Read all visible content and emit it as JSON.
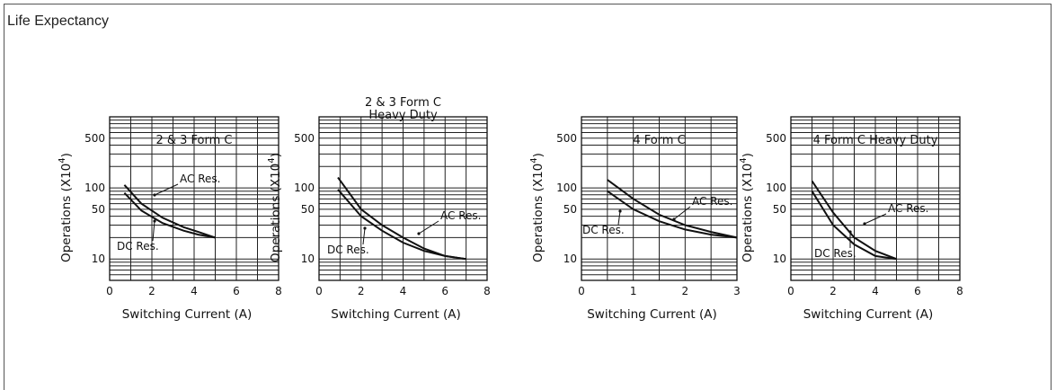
{
  "page": {
    "title": "Life Expectancy"
  },
  "chart_data": [
    {
      "type": "line",
      "title_lines": [
        "2 & 3 Form C"
      ],
      "xlabel": "Switching Current (A)",
      "ylabel": "Operations (X10^4)",
      "xlim": [
        0,
        8
      ],
      "xticks": [
        0,
        2,
        4,
        6,
        8
      ],
      "yscale": "log",
      "ylim": [
        5,
        1000
      ],
      "yticks": [
        10,
        50,
        100,
        500
      ],
      "grid": true,
      "series": [
        {
          "name": "AC Res.",
          "x": [
            0.7,
            1.5,
            2.5,
            3.5,
            4.2,
            5.0
          ],
          "y": [
            110,
            60,
            38,
            28,
            24,
            20
          ]
        },
        {
          "name": "DC Res.",
          "x": [
            0.7,
            1.5,
            2.5,
            3.5,
            4.2,
            5.0
          ],
          "y": [
            85,
            48,
            32,
            25,
            22,
            20
          ]
        }
      ]
    },
    {
      "type": "line",
      "title_lines": [
        "2 & 3 Form C",
        "Heavy Duty"
      ],
      "xlabel": "Switching Current (A)",
      "ylabel": "Operations (X10^4)",
      "xlim": [
        0,
        8
      ],
      "xticks": [
        0,
        2,
        4,
        6,
        8
      ],
      "yscale": "log",
      "ylim": [
        5,
        1000
      ],
      "yticks": [
        10,
        50,
        100,
        500
      ],
      "grid": true,
      "series": [
        {
          "name": "AC Res.",
          "x": [
            0.9,
            2.0,
            3.0,
            4.0,
            5.0,
            6.0,
            7.0
          ],
          "y": [
            140,
            50,
            30,
            20,
            14,
            11,
            10
          ]
        },
        {
          "name": "DC Res.",
          "x": [
            0.9,
            2.0,
            3.0,
            4.0,
            5.0,
            6.0,
            7.0
          ],
          "y": [
            95,
            40,
            25,
            17,
            13,
            11,
            10
          ]
        }
      ]
    },
    {
      "type": "line",
      "title_lines": [
        "4 Form C"
      ],
      "xlabel": "Switching Current (A)",
      "ylabel": "Operations (X10^4)",
      "xlim": [
        0,
        3
      ],
      "xticks": [
        0,
        1,
        2,
        3
      ],
      "yscale": "log",
      "ylim": [
        5,
        1000
      ],
      "yticks": [
        10,
        50,
        100,
        500
      ],
      "grid": true,
      "series": [
        {
          "name": "AC Res.",
          "x": [
            0.5,
            1.0,
            1.5,
            2.0,
            2.5,
            3.0
          ],
          "y": [
            130,
            70,
            42,
            30,
            24,
            20
          ]
        },
        {
          "name": "DC Res.",
          "x": [
            0.5,
            1.0,
            1.5,
            2.0,
            2.5,
            3.0
          ],
          "y": [
            90,
            50,
            34,
            26,
            22,
            20
          ]
        }
      ]
    },
    {
      "type": "line",
      "title_lines": [
        "4 Form C Heavy Duty"
      ],
      "xlabel": "Switching Current (A)",
      "ylabel": "Operations (X10^4)",
      "xlim": [
        0,
        8
      ],
      "xticks": [
        0,
        2,
        4,
        6,
        8
      ],
      "yscale": "log",
      "ylim": [
        5,
        1000
      ],
      "yticks": [
        10,
        50,
        100,
        500
      ],
      "grid": true,
      "series": [
        {
          "name": "AC Res.",
          "x": [
            1.0,
            2.0,
            3.0,
            4.0,
            5.0
          ],
          "y": [
            125,
            45,
            20,
            13,
            10
          ]
        },
        {
          "name": "DC Res.",
          "x": [
            1.0,
            2.0,
            3.0,
            4.0,
            5.0
          ],
          "y": [
            90,
            30,
            16,
            11,
            10
          ]
        }
      ]
    }
  ]
}
